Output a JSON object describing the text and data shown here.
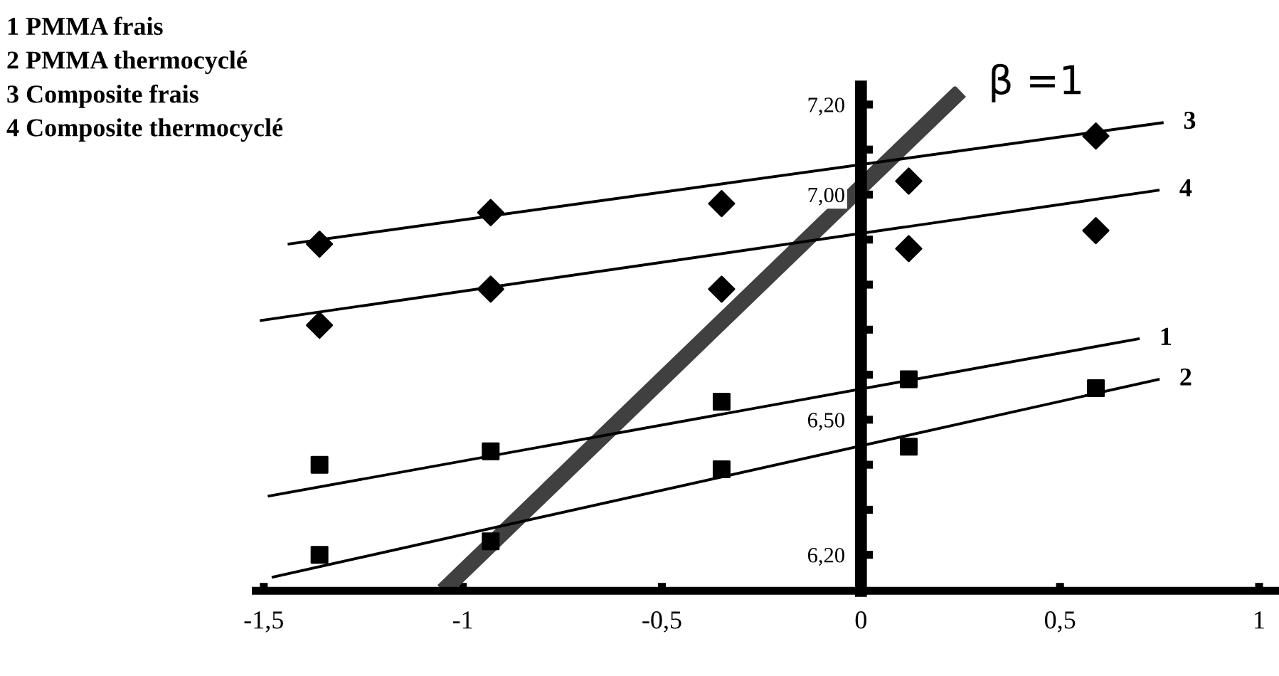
{
  "chart_data": {
    "type": "scatter",
    "annotations": [
      "1 PMMA frais",
      "2 PMMA thermocyclé",
      "3 Composite frais",
      "4 Composite thermocyclé",
      {
        "text": "β =1",
        "x": 0.25,
        "y": 7.23
      }
    ],
    "xlim": [
      -1.52,
      1.05
    ],
    "ylim": [
      6.12,
      7.24
    ],
    "xticks": [
      {
        "value": -1.5,
        "label": "-1,5"
      },
      -1,
      {
        "value": -0.5,
        "label": "-0,5"
      },
      0,
      {
        "value": 0.5,
        "label": "0,5"
      },
      1
    ],
    "yticks": [
      {
        "value": 6.2,
        "label": "6,20"
      },
      {
        "value": 6.3,
        "label": null
      },
      {
        "value": 6.4,
        "label": null
      },
      {
        "value": 6.5,
        "label": "6,50"
      },
      {
        "value": 6.6,
        "label": null
      },
      {
        "value": 6.7,
        "label": null
      },
      {
        "value": 6.8,
        "label": null
      },
      {
        "value": 6.9,
        "label": null
      },
      {
        "value": 7.0,
        "label": "7,00"
      },
      {
        "value": 7.1,
        "label": null
      },
      {
        "value": 7.2,
        "label": "7,20"
      }
    ],
    "series": [
      {
        "type": "line",
        "color": "#404040",
        "x": [
          -1.05,
          0.25
        ],
        "values": [
          6.12,
          7.23
        ],
        "line_style": "solid",
        "marker": "none"
      },
      {
        "marker": "diamond",
        "color": "#000000",
        "x": [
          -1.36,
          -0.93,
          -0.35,
          0.12,
          0.59
        ],
        "values": [
          6.89,
          6.96,
          6.98,
          7.03,
          7.13
        ]
      },
      {
        "marker": "diamond",
        "color": "#000000",
        "x": [
          -1.36,
          -0.93,
          -0.35,
          0.12,
          0.59
        ],
        "values": [
          6.71,
          6.79,
          6.79,
          6.88,
          6.92
        ]
      },
      {
        "marker": "square",
        "color": "#000000",
        "x": [
          -1.36,
          -0.93,
          -0.35,
          0.12
        ],
        "values": [
          6.4,
          6.43,
          6.54,
          6.59
        ]
      },
      {
        "marker": "square",
        "color": "#000000",
        "x": [
          -1.36,
          -0.93,
          -0.35,
          0.12,
          0.59
        ],
        "values": [
          6.2,
          6.23,
          6.39,
          6.44,
          6.57
        ]
      },
      {
        "type": "line",
        "name": "3",
        "color": "#000000",
        "x": [
          -1.44,
          0.76
        ],
        "values": [
          6.89,
          7.16
        ],
        "line_style": "solid",
        "marker": "none"
      },
      {
        "type": "line",
        "name": "4",
        "color": "#000000",
        "x": [
          -1.51,
          0.75
        ],
        "values": [
          6.72,
          7.01
        ],
        "line_style": "solid",
        "marker": "none"
      },
      {
        "type": "line",
        "name": "1",
        "color": "#000000",
        "x": [
          -1.49,
          0.7
        ],
        "values": [
          6.33,
          6.68
        ],
        "line_style": "solid",
        "marker": "none"
      },
      {
        "type": "line",
        "name": "2",
        "color": "#000000",
        "x": [
          -1.48,
          0.75
        ],
        "values": [
          6.15,
          6.59
        ],
        "line_style": "solid",
        "marker": "none"
      }
    ]
  }
}
